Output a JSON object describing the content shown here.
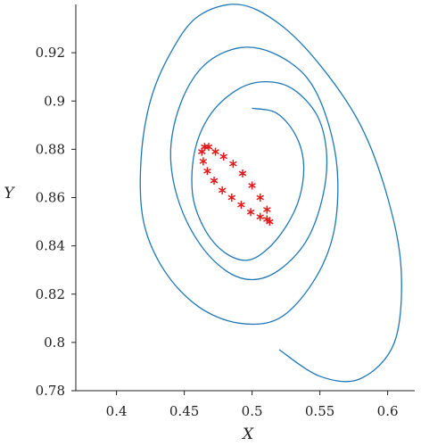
{
  "chart_data": {
    "type": "line",
    "xlabel": "X",
    "ylabel": "Y",
    "xlim": [
      0.37,
      0.62
    ],
    "ylim": [
      0.78,
      0.94
    ],
    "xticks": [
      0.4,
      0.45,
      0.5,
      0.55,
      0.6
    ],
    "xtick_labels": [
      "0.4",
      "0.45",
      "0.5",
      "0.55",
      "0.6"
    ],
    "yticks": [
      0.78,
      0.8,
      0.82,
      0.84,
      0.86,
      0.88,
      0.9,
      0.92
    ],
    "ytick_labels": [
      "0.78",
      "0.8",
      "0.82",
      "0.84",
      "0.86",
      "0.88",
      "0.9",
      "0.92"
    ],
    "grid": false,
    "series": [
      {
        "style": "line",
        "color": "#1f77b4",
        "x": [
          0.52,
          0.55,
          0.58,
          0.605,
          0.61,
          0.6,
          0.58,
          0.55,
          0.52,
          0.49,
          0.46,
          0.44,
          0.425,
          0.418,
          0.42,
          0.435,
          0.46,
          0.49,
          0.52,
          0.545,
          0.56,
          0.563,
          0.555,
          0.54,
          0.515,
          0.49,
          0.465,
          0.448,
          0.44,
          0.445,
          0.46,
          0.48,
          0.5,
          0.52,
          0.54,
          0.552,
          0.555,
          0.548,
          0.53,
          0.51,
          0.49,
          0.47,
          0.458,
          0.456,
          0.464,
          0.478,
          0.495,
          0.51,
          0.525,
          0.535,
          0.538,
          0.532,
          0.518,
          0.5
        ],
        "y": [
          0.797,
          0.786,
          0.785,
          0.8,
          0.83,
          0.86,
          0.89,
          0.915,
          0.932,
          0.94,
          0.935,
          0.92,
          0.9,
          0.875,
          0.85,
          0.83,
          0.815,
          0.808,
          0.81,
          0.825,
          0.845,
          0.87,
          0.893,
          0.91,
          0.92,
          0.922,
          0.915,
          0.9,
          0.88,
          0.86,
          0.842,
          0.83,
          0.826,
          0.83,
          0.842,
          0.86,
          0.878,
          0.894,
          0.905,
          0.908,
          0.905,
          0.895,
          0.88,
          0.862,
          0.848,
          0.838,
          0.834,
          0.838,
          0.848,
          0.86,
          0.874,
          0.886,
          0.895,
          0.897
        ]
      },
      {
        "style": "markers",
        "marker": "*",
        "color": "#e31a1c",
        "x": [
          0.465,
          0.468,
          0.473,
          0.479,
          0.486,
          0.493,
          0.5,
          0.506,
          0.511,
          0.513,
          0.511,
          0.506,
          0.499,
          0.492,
          0.485,
          0.478,
          0.472,
          0.467,
          0.464,
          0.463
        ],
        "y": [
          0.881,
          0.881,
          0.879,
          0.877,
          0.874,
          0.87,
          0.865,
          0.86,
          0.855,
          0.85,
          0.851,
          0.852,
          0.854,
          0.857,
          0.86,
          0.863,
          0.867,
          0.871,
          0.875,
          0.879
        ]
      }
    ]
  }
}
